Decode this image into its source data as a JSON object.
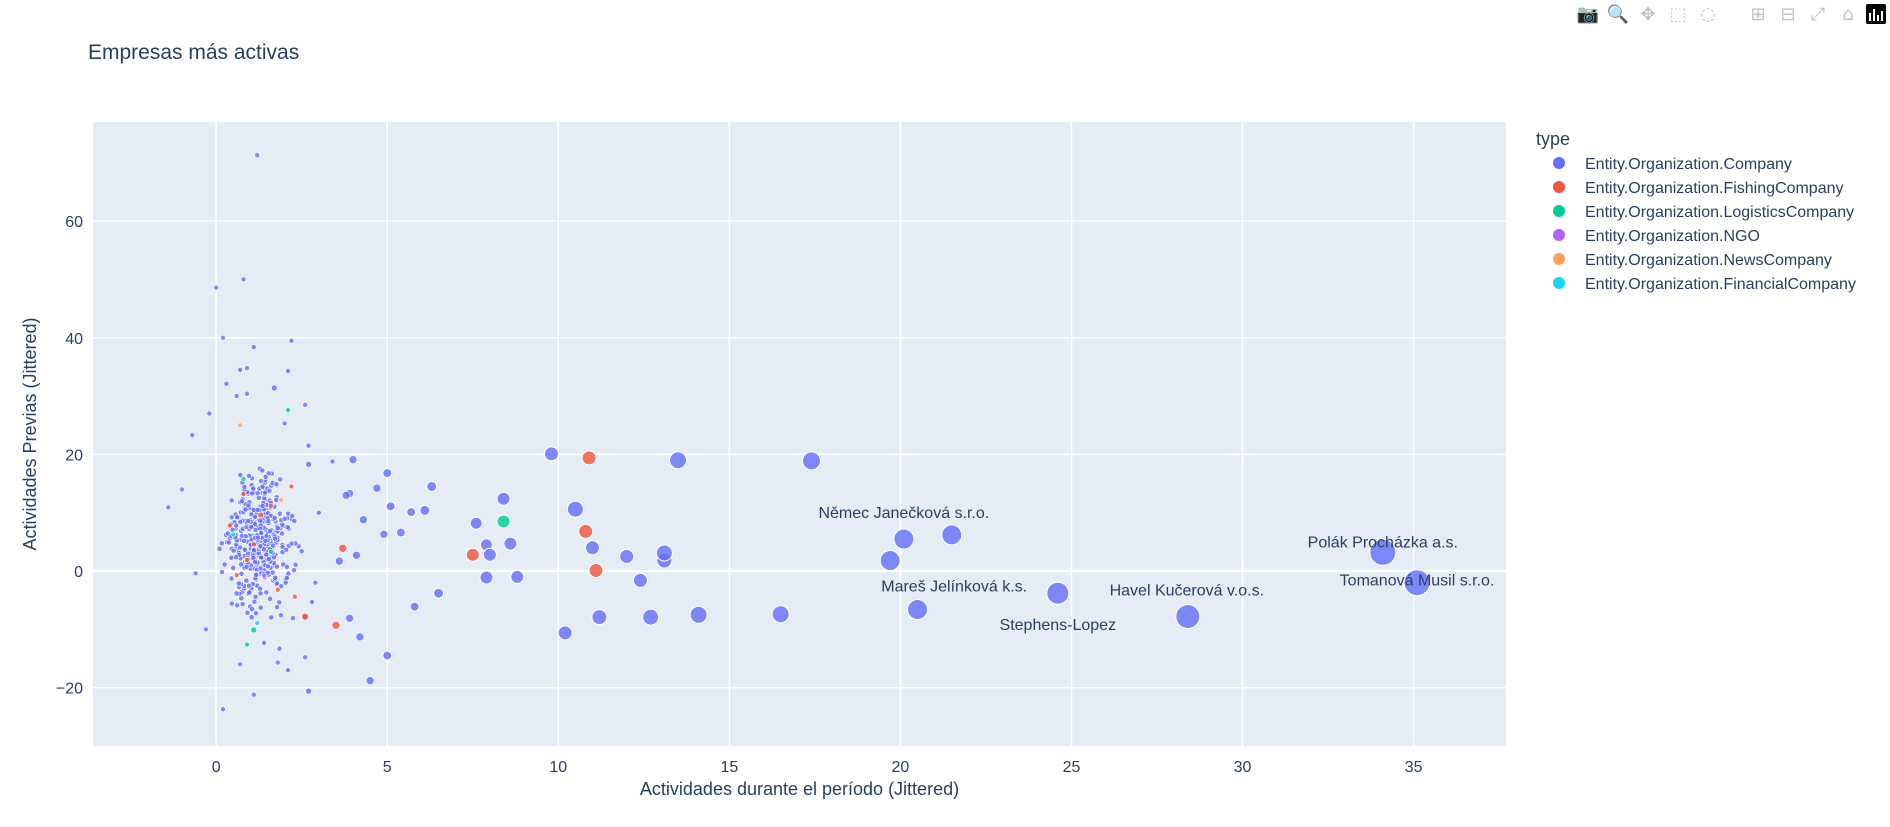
{
  "toolbar": {
    "buttons": [
      {
        "name": "camera-icon",
        "glyph": "📷"
      },
      {
        "name": "zoom-icon",
        "glyph": "🔍"
      },
      {
        "name": "pan-icon",
        "glyph": "✥"
      },
      {
        "name": "box-select-icon",
        "glyph": "⬚"
      },
      {
        "name": "lasso-select-icon",
        "glyph": "◌"
      },
      {
        "name": "zoom-in-icon",
        "glyph": "⊞"
      },
      {
        "name": "zoom-out-icon",
        "glyph": "⊟"
      },
      {
        "name": "autoscale-icon",
        "glyph": "⤢"
      },
      {
        "name": "home-icon",
        "glyph": "⌂"
      }
    ]
  },
  "chart_data": {
    "type": "scatter",
    "title": "Empresas más activas",
    "xlabel": "Actividades durante el período (Jittered)",
    "ylabel": "Actividades Previas (Jittered)",
    "xlim": [
      -3.6,
      37.7
    ],
    "ylim": [
      -30,
      77
    ],
    "xticks": [
      0,
      5,
      10,
      15,
      20,
      25,
      30,
      35
    ],
    "yticks": [
      -20,
      0,
      20,
      40,
      60
    ],
    "grid": true,
    "legend": {
      "title": "type",
      "placement": "right",
      "entries": [
        {
          "name": "Entity.Organization.Company",
          "color": "#636efa"
        },
        {
          "name": "Entity.Organization.FishingCompany",
          "color": "#EF553B"
        },
        {
          "name": "Entity.Organization.LogisticsCompany",
          "color": "#00cc96"
        },
        {
          "name": "Entity.Organization.NGO",
          "color": "#ab63fa"
        },
        {
          "name": "Entity.Organization.NewsCompany",
          "color": "#FFA15A"
        },
        {
          "name": "Entity.Organization.FinancialCompany",
          "color": "#19d3f3"
        }
      ]
    },
    "cluster_note": "dense cluster of small markers for companies with 0-3 activities",
    "series": [
      {
        "name": "Entity.Organization.Company",
        "color": "#636efa",
        "points": [
          {
            "x": 35.1,
            "y": -2,
            "s": 13,
            "label": "Tomanová Musil s.r.o."
          },
          {
            "x": 34.1,
            "y": 3.2,
            "s": 13,
            "label": "Polák Procházka a.s."
          },
          {
            "x": 28.4,
            "y": -7.8,
            "s": 12,
            "label": "Havel Kučerová v.o.s."
          },
          {
            "x": 24.6,
            "y": -3.8,
            "s": 11,
            "label": "Stephens-Lopez"
          },
          {
            "x": 21.5,
            "y": 6.2,
            "s": 10
          },
          {
            "x": 20.1,
            "y": 5.5,
            "s": 10,
            "label": "Němec Janečková s.r.o."
          },
          {
            "x": 19.7,
            "y": 1.8,
            "s": 10,
            "label": "Mareš Jelínková k.s."
          },
          {
            "x": 20.5,
            "y": -6.6,
            "s": 10
          },
          {
            "x": 17.4,
            "y": 18.9,
            "s": 9
          },
          {
            "x": 16.5,
            "y": -7.4,
            "s": 8.5
          },
          {
            "x": 14.1,
            "y": -7.5,
            "s": 8.5
          },
          {
            "x": 13.5,
            "y": 19,
            "s": 8.5
          },
          {
            "x": 13.1,
            "y": 3.1,
            "s": 8
          },
          {
            "x": 13.1,
            "y": 1.8,
            "s": 7.5
          },
          {
            "x": 12.7,
            "y": -7.9,
            "s": 8
          },
          {
            "x": 12.4,
            "y": -1.6,
            "s": 7
          },
          {
            "x": 12.0,
            "y": 2.5,
            "s": 7
          },
          {
            "x": 11.2,
            "y": -7.9,
            "s": 7.5
          },
          {
            "x": 11.0,
            "y": 4.0,
            "s": 7
          },
          {
            "x": 10.5,
            "y": 10.6,
            "s": 8
          },
          {
            "x": 10.2,
            "y": -10.6,
            "s": 7
          },
          {
            "x": 9.8,
            "y": 20.1,
            "s": 7
          },
          {
            "x": 8.8,
            "y": -1,
            "s": 6.5
          },
          {
            "x": 8.6,
            "y": 4.7,
            "s": 6.5
          },
          {
            "x": 8.4,
            "y": 12.4,
            "s": 6.5
          },
          {
            "x": 8.0,
            "y": 2.8,
            "s": 6.5
          },
          {
            "x": 7.9,
            "y": 4.5,
            "s": 6
          },
          {
            "x": 7.9,
            "y": -1.1,
            "s": 6.5
          },
          {
            "x": 7.6,
            "y": 8.2,
            "s": 6
          },
          {
            "x": 6.5,
            "y": -3.8,
            "s": 5
          },
          {
            "x": 6.3,
            "y": 14.5,
            "s": 5
          },
          {
            "x": 6.1,
            "y": 10.4,
            "s": 5
          },
          {
            "x": 5.7,
            "y": 10.1,
            "s": 4.5
          },
          {
            "x": 5.8,
            "y": -6.1,
            "s": 4.5
          },
          {
            "x": 5.4,
            "y": 6.6,
            "s": 4.5
          },
          {
            "x": 5.1,
            "y": 11.1,
            "s": 4.5
          },
          {
            "x": 5.0,
            "y": 16.8,
            "s": 4.5
          },
          {
            "x": 5.0,
            "y": -14.5,
            "s": 4.5
          },
          {
            "x": 4.9,
            "y": 6.3,
            "s": 4
          },
          {
            "x": 4.7,
            "y": 14.2,
            "s": 4
          },
          {
            "x": 4.5,
            "y": -18.8,
            "s": 4
          },
          {
            "x": 4.3,
            "y": 8.8,
            "s": 4
          },
          {
            "x": 4.2,
            "y": -11.3,
            "s": 4
          },
          {
            "x": 4.1,
            "y": 2.7,
            "s": 4
          },
          {
            "x": 4.0,
            "y": 19.1,
            "s": 4
          },
          {
            "x": 3.9,
            "y": 13.3,
            "s": 4
          },
          {
            "x": 3.8,
            "y": 13.0,
            "s": 4
          },
          {
            "x": 3.9,
            "y": -8.1,
            "s": 4
          },
          {
            "x": 3.6,
            "y": 1.7,
            "s": 4
          },
          {
            "x": 1.2,
            "y": 71.3,
            "s": 2.5
          },
          {
            "x": 0.8,
            "y": 50.0,
            "s": 2.5
          },
          {
            "x": 0.0,
            "y": 48.6,
            "s": 2.5
          },
          {
            "x": 0.2,
            "y": 40.0,
            "s": 2.5
          },
          {
            "x": 2.2,
            "y": 39.5,
            "s": 2.5
          },
          {
            "x": 1.1,
            "y": 38.4,
            "s": 2.5
          },
          {
            "x": 0.7,
            "y": 34.5,
            "s": 2.5
          },
          {
            "x": 0.9,
            "y": 34.8,
            "s": 2.5
          },
          {
            "x": 2.1,
            "y": 34.3,
            "s": 2.5
          },
          {
            "x": 0.3,
            "y": 32.1,
            "s": 2.5
          },
          {
            "x": 1.7,
            "y": 31.4,
            "s": 3
          },
          {
            "x": 0.6,
            "y": 30.0,
            "s": 2.5
          },
          {
            "x": 0.9,
            "y": 30.4,
            "s": 2.5
          },
          {
            "x": 2.6,
            "y": 28.5,
            "s": 2.5
          },
          {
            "x": -0.2,
            "y": 27.0,
            "s": 2.5
          },
          {
            "x": 2.0,
            "y": 25.3,
            "s": 2.5
          },
          {
            "x": -0.7,
            "y": 23.3,
            "s": 2.5
          },
          {
            "x": 2.7,
            "y": 21.5,
            "s": 2.5
          },
          {
            "x": 3.4,
            "y": 18.8,
            "s": 2.5
          },
          {
            "x": 2.7,
            "y": 18.3,
            "s": 3
          },
          {
            "x": -1.0,
            "y": 14.0,
            "s": 2.5
          },
          {
            "x": -1.4,
            "y": 10.9,
            "s": 2.5
          },
          {
            "x": 3.0,
            "y": 10.0,
            "s": 2.5
          },
          {
            "x": 2.9,
            "y": -2.0,
            "s": 2.5
          },
          {
            "x": 2.8,
            "y": -5.3,
            "s": 2.5
          },
          {
            "x": 2.6,
            "y": -7.9,
            "s": 2.5
          },
          {
            "x": 2.6,
            "y": -14.8,
            "s": 2.5
          },
          {
            "x": 2.7,
            "y": -20.6,
            "s": 3
          },
          {
            "x": 1.1,
            "y": -21.2,
            "s": 2.5
          },
          {
            "x": 0.2,
            "y": -23.7,
            "s": 2.5
          },
          {
            "x": 1.8,
            "y": -15.7,
            "s": 2.5
          },
          {
            "x": 0.7,
            "y": -16.0,
            "s": 2.5
          },
          {
            "x": 1.4,
            "y": -12.3,
            "s": 2.5
          },
          {
            "x": -0.3,
            "y": -10.0,
            "s": 2.5
          },
          {
            "x": -0.6,
            "y": -0.4,
            "s": 2.5
          },
          {
            "x": 2.1,
            "y": -17.0,
            "s": 2.5
          }
        ]
      },
      {
        "name": "Entity.Organization.FishingCompany",
        "color": "#EF553B",
        "points": [
          {
            "x": 10.9,
            "y": 19.4,
            "s": 7
          },
          {
            "x": 10.8,
            "y": 6.8,
            "s": 7
          },
          {
            "x": 11.1,
            "y": 0.1,
            "s": 7
          },
          {
            "x": 7.5,
            "y": 2.8,
            "s": 6.5
          },
          {
            "x": 3.7,
            "y": 3.9,
            "s": 4
          },
          {
            "x": 3.5,
            "y": -9.3,
            "s": 4
          },
          {
            "x": 2.6,
            "y": -7.8,
            "s": 3.5
          },
          {
            "x": 1.3,
            "y": 9.6,
            "s": 3
          },
          {
            "x": 0.8,
            "y": 13.2,
            "s": 2.5
          },
          {
            "x": 1.8,
            "y": -3.2,
            "s": 2.5
          },
          {
            "x": 1.1,
            "y": 4.6,
            "s": 2.5
          },
          {
            "x": 0.6,
            "y": -0.7,
            "s": 2.5
          },
          {
            "x": 2.2,
            "y": 14.5,
            "s": 2.5
          },
          {
            "x": 1.6,
            "y": 11.2,
            "s": 2.5
          },
          {
            "x": 0.9,
            "y": 1.9,
            "s": 2.5
          },
          {
            "x": 2.3,
            "y": -4.4,
            "s": 2.5
          },
          {
            "x": 0.4,
            "y": 7.8,
            "s": 2.5
          }
        ]
      },
      {
        "name": "Entity.Organization.LogisticsCompany",
        "color": "#00cc96",
        "points": [
          {
            "x": 8.4,
            "y": 8.5,
            "s": 6.5
          },
          {
            "x": 2.1,
            "y": 27.6,
            "s": 2.5
          },
          {
            "x": 1.1,
            "y": -10.1,
            "s": 3
          },
          {
            "x": 0.9,
            "y": -12.6,
            "s": 2.5
          },
          {
            "x": 0.8,
            "y": 15.8,
            "s": 2.5
          },
          {
            "x": 1.6,
            "y": 3.3,
            "s": 2.5
          }
        ]
      },
      {
        "name": "Entity.Organization.NGO",
        "color": "#ab63fa",
        "points": [
          {
            "x": 1.4,
            "y": -0.8,
            "s": 2.5
          }
        ]
      },
      {
        "name": "Entity.Organization.NewsCompany",
        "color": "#FFA15A",
        "points": [
          {
            "x": 0.7,
            "y": 25.0,
            "s": 2.5
          },
          {
            "x": 1.9,
            "y": 12.2,
            "s": 2.5
          }
        ]
      },
      {
        "name": "Entity.Organization.FinancialCompany",
        "color": "#19d3f3",
        "points": [
          {
            "x": 1.2,
            "y": -8.9,
            "s": 2.5
          },
          {
            "x": 0.5,
            "y": 6.3,
            "s": 2.5
          }
        ]
      }
    ]
  }
}
